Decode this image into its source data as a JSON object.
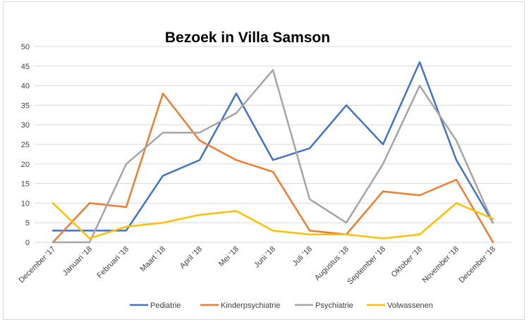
{
  "chart_data": {
    "type": "line",
    "title": "Bezoek in Villa Samson",
    "xlabel": "",
    "ylabel": "",
    "ylim": [
      0,
      50
    ],
    "yticks": [
      0,
      5,
      10,
      15,
      20,
      25,
      30,
      35,
      40,
      45,
      50
    ],
    "grid": true,
    "legend": "bottom",
    "categories": [
      "December '17",
      "Januari '18",
      "Februari '18",
      "Maart '18",
      "April '18",
      "Mei '18",
      "Juni '18",
      "Juli '18",
      "Augustus '18",
      "September '18",
      "Oktober '18",
      "November '18",
      "December '18"
    ],
    "series": [
      {
        "name": "Pediatrie",
        "color": "#4472c4",
        "values": [
          3,
          3,
          3,
          17,
          21,
          38,
          21,
          24,
          35,
          25,
          46,
          21,
          5
        ]
      },
      {
        "name": "Kinderpsychiatrie",
        "color": "#ed7d31",
        "values": [
          0,
          10,
          9,
          38,
          26,
          21,
          18,
          3,
          2,
          13,
          12,
          16,
          0
        ]
      },
      {
        "name": "Psychiatrie",
        "color": "#a5a5a5",
        "values": [
          0,
          0,
          20,
          28,
          28,
          33,
          44,
          11,
          5,
          20,
          40,
          26,
          5
        ]
      },
      {
        "name": "Volwassenen",
        "color": "#ffc000",
        "values": [
          10,
          1,
          4,
          5,
          7,
          8,
          3,
          2,
          2,
          1,
          2,
          10,
          6
        ]
      }
    ]
  }
}
